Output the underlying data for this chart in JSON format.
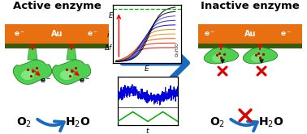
{
  "title_left": "Active enzyme",
  "title_right": "Inactive enzyme",
  "blue": "#1a6bbf",
  "gold_color": "#e87010",
  "dark_strip_color": "#3a5a10",
  "green_light": "#50d050",
  "green_dark": "#208020",
  "green_mid": "#40c040",
  "white": "#ffffff",
  "red": "#dd0000",
  "black": "#000000",
  "o2_label": "O$_2$",
  "h2o_label": "H$_2$O",
  "au_label": "Au",
  "active_label": "Active enzyme",
  "inactive_label": "Inactive enzyme",
  "cv_colors": [
    "#cc0000",
    "#dd2200",
    "#ee5500",
    "#ff8800",
    "#cc8800",
    "#0000cc",
    "#2222dd",
    "#4444ee",
    "#000033",
    "#000000"
  ],
  "figsize": [
    3.78,
    1.66
  ],
  "dpi": 100
}
